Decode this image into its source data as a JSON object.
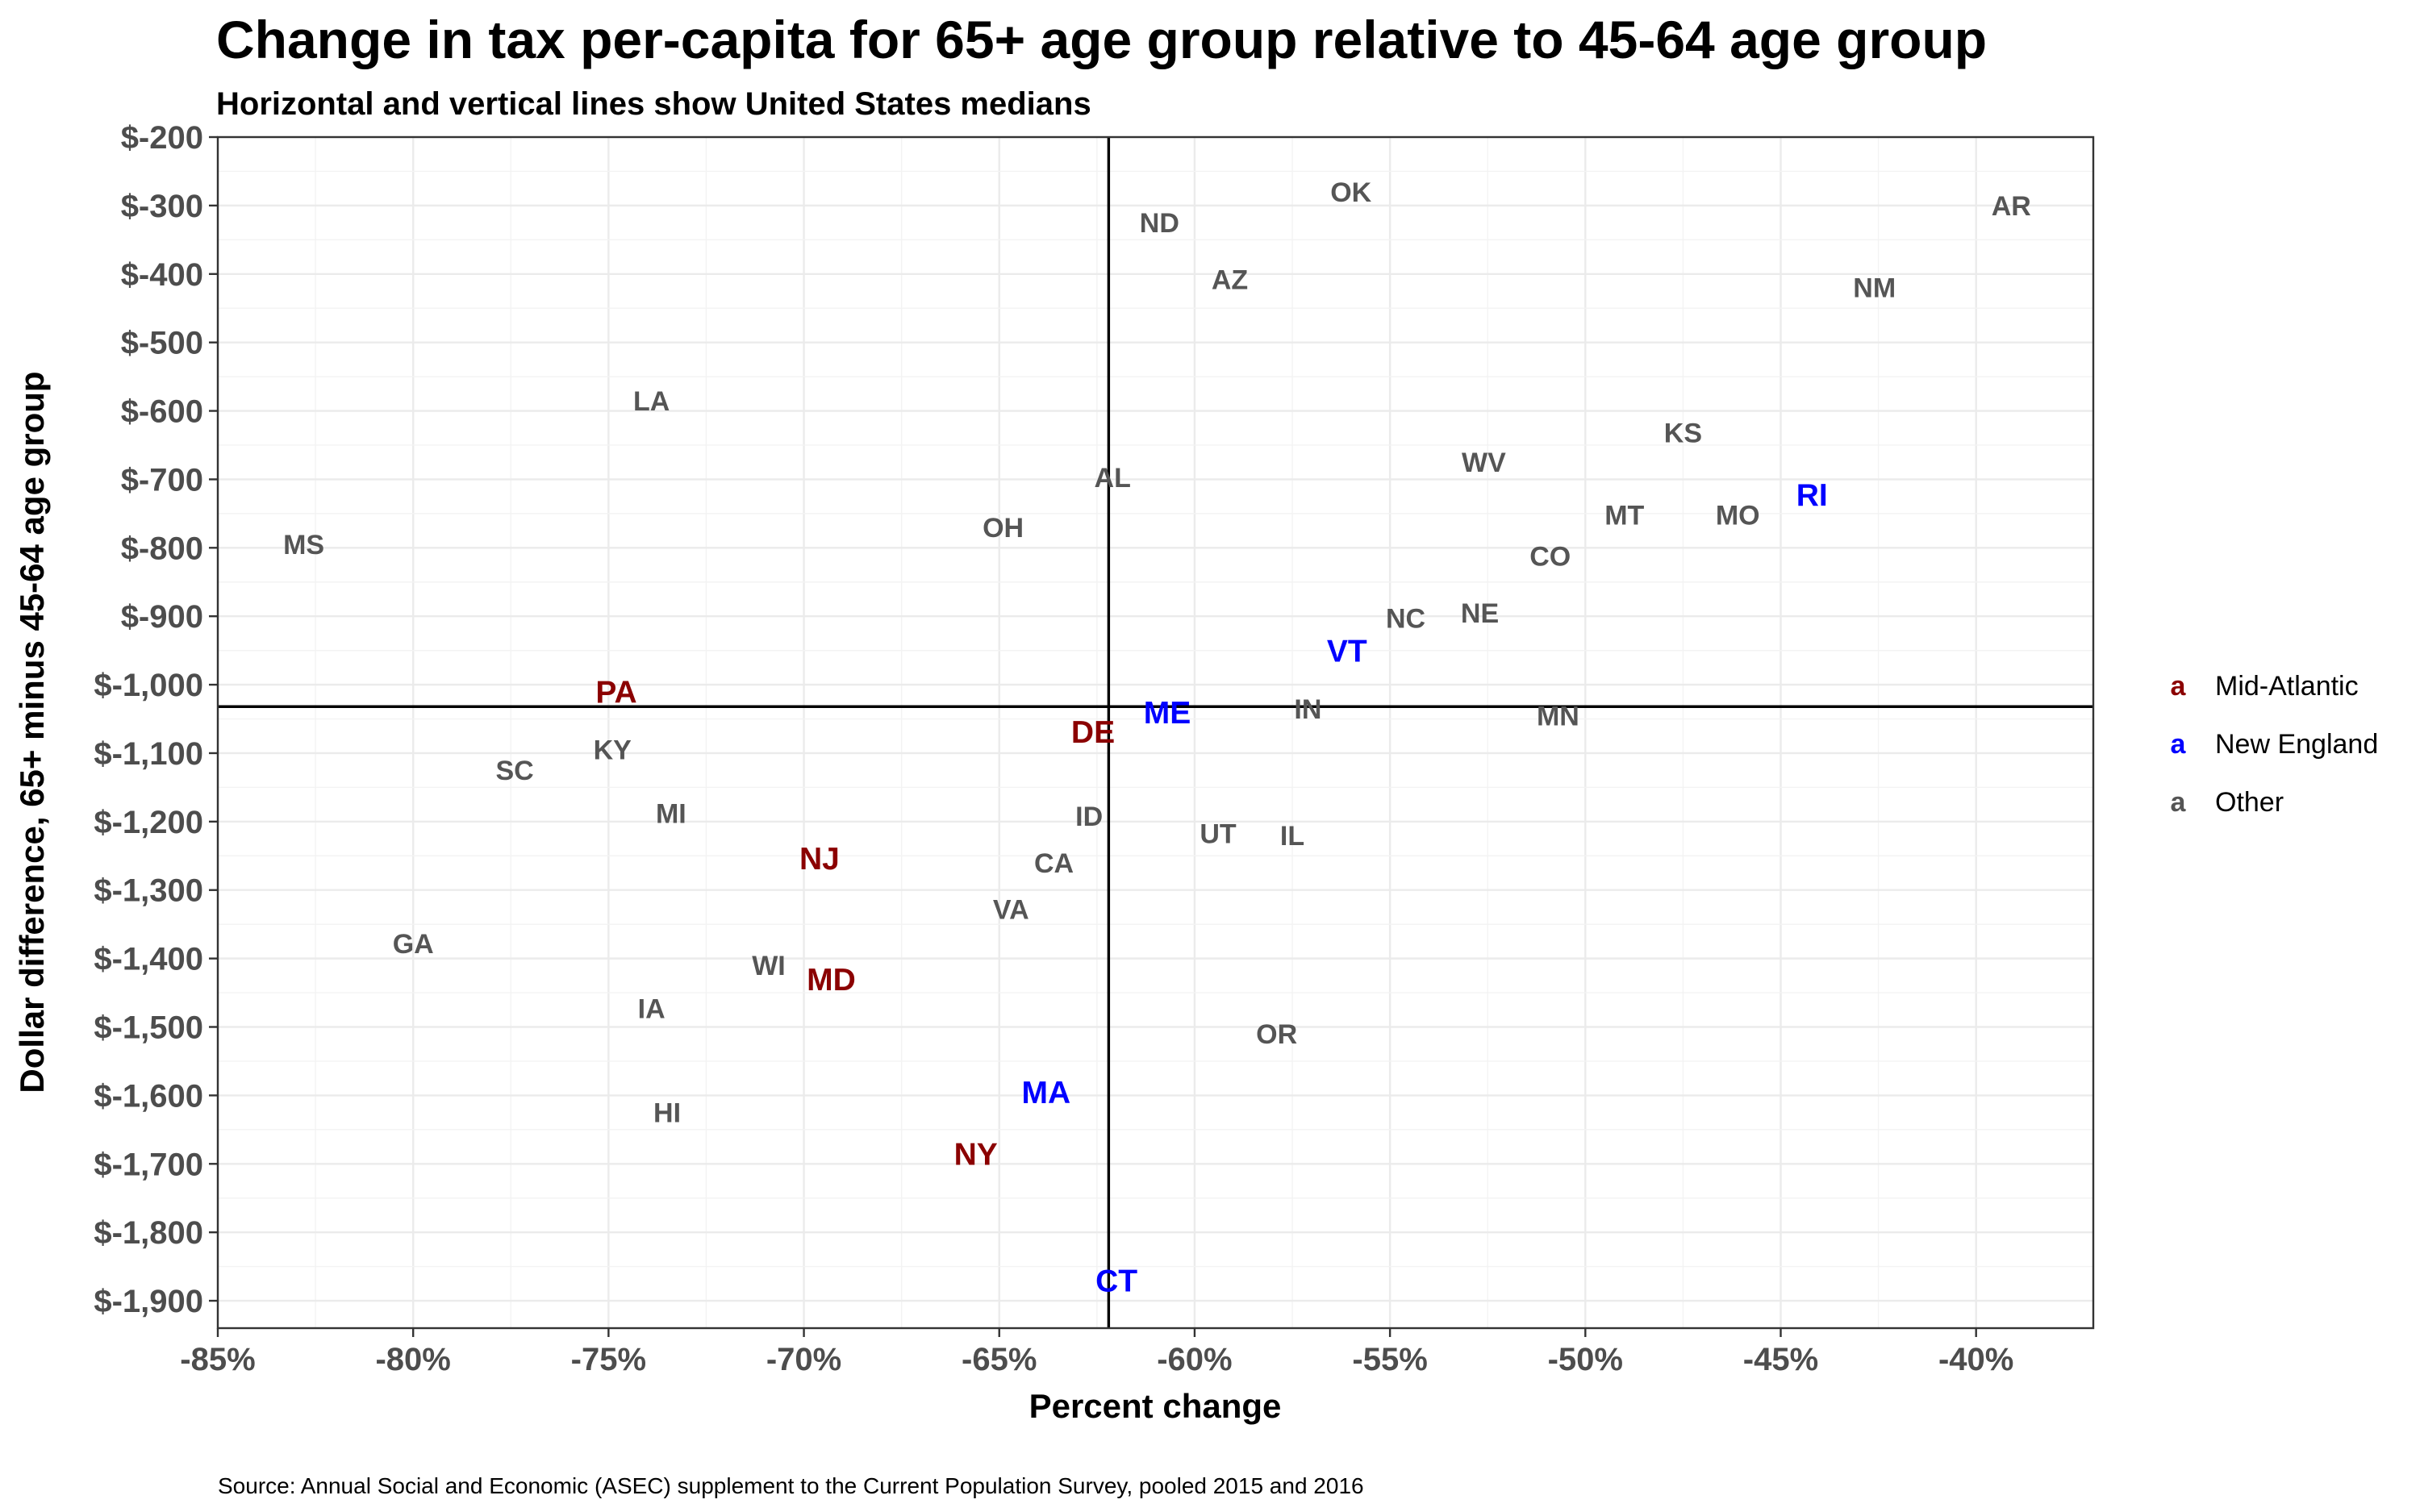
{
  "chart_data": {
    "type": "scatter",
    "title": "Change in tax per-capita for 65+ age group relative to 45-64 age group",
    "subtitle": "Horizontal and vertical lines show United States medians",
    "xlabel": "Percent change",
    "ylabel": "Dollar difference, 65+ minus 45-64 age group",
    "caption": "Source: Annual Social and Economic (ASEC) supplement to the Current Population Survey, pooled 2015 and 2016",
    "xlim": [
      -85,
      -37
    ],
    "ylim": [
      -1940,
      -200
    ],
    "x_ticks": [
      -85,
      -80,
      -75,
      -70,
      -65,
      -60,
      -55,
      -50,
      -45,
      -40
    ],
    "x_tick_labels": [
      "-85%",
      "-80%",
      "-75%",
      "-70%",
      "-65%",
      "-60%",
      "-55%",
      "-50%",
      "-45%",
      "-40%"
    ],
    "y_ticks": [
      -200,
      -300,
      -400,
      -500,
      -600,
      -700,
      -800,
      -900,
      -1000,
      -1100,
      -1200,
      -1300,
      -1400,
      -1500,
      -1600,
      -1700,
      -1800,
      -1900
    ],
    "y_tick_labels": [
      "$-200",
      "$-300",
      "$-400",
      "$-500",
      "$-600",
      "$-700",
      "$-800",
      "$-900",
      "$-1,000",
      "$-1,100",
      "$-1,200",
      "$-1,300",
      "$-1,400",
      "$-1,500",
      "$-1,600",
      "$-1,700",
      "$-1,800",
      "$-1,900"
    ],
    "grid": true,
    "median_x": -62.2,
    "median_y": -1032,
    "legend_position": "right",
    "legend_key_glyph": "a",
    "groups": [
      {
        "name": "Mid-Atlantic",
        "color": "#8b0000"
      },
      {
        "name": "New England",
        "color": "#0000ff"
      },
      {
        "name": "Other",
        "color": "#555555"
      }
    ],
    "points": [
      {
        "label": "OK",
        "x": -56.0,
        "y": -280,
        "group": "Other"
      },
      {
        "label": "AR",
        "x": -39.1,
        "y": -300,
        "group": "Other"
      },
      {
        "label": "ND",
        "x": -60.9,
        "y": -325,
        "group": "Other"
      },
      {
        "label": "AZ",
        "x": -59.1,
        "y": -408,
        "group": "Other"
      },
      {
        "label": "NM",
        "x": -42.6,
        "y": -420,
        "group": "Other"
      },
      {
        "label": "LA",
        "x": -73.9,
        "y": -585,
        "group": "Other"
      },
      {
        "label": "KS",
        "x": -47.5,
        "y": -632,
        "group": "Other"
      },
      {
        "label": "WV",
        "x": -52.6,
        "y": -675,
        "group": "Other"
      },
      {
        "label": "AL",
        "x": -62.1,
        "y": -697,
        "group": "Other"
      },
      {
        "label": "RI",
        "x": -44.2,
        "y": -722,
        "group": "New England"
      },
      {
        "label": "MT",
        "x": -49.0,
        "y": -752,
        "group": "Other"
      },
      {
        "label": "MO",
        "x": -46.1,
        "y": -752,
        "group": "Other"
      },
      {
        "label": "OH",
        "x": -64.9,
        "y": -770,
        "group": "Other"
      },
      {
        "label": "MS",
        "x": -82.8,
        "y": -795,
        "group": "Other"
      },
      {
        "label": "CO",
        "x": -50.9,
        "y": -812,
        "group": "Other"
      },
      {
        "label": "NE",
        "x": -52.7,
        "y": -895,
        "group": "Other"
      },
      {
        "label": "NC",
        "x": -54.6,
        "y": -903,
        "group": "Other"
      },
      {
        "label": "VT",
        "x": -56.1,
        "y": -950,
        "group": "New England"
      },
      {
        "label": "PA",
        "x": -74.8,
        "y": -1010,
        "group": "Mid-Atlantic"
      },
      {
        "label": "IN",
        "x": -57.1,
        "y": -1035,
        "group": "Other"
      },
      {
        "label": "ME",
        "x": -60.7,
        "y": -1040,
        "group": "New England"
      },
      {
        "label": "MN",
        "x": -50.7,
        "y": -1045,
        "group": "Other"
      },
      {
        "label": "DE",
        "x": -62.6,
        "y": -1068,
        "group": "Mid-Atlantic"
      },
      {
        "label": "KY",
        "x": -74.9,
        "y": -1095,
        "group": "Other"
      },
      {
        "label": "SC",
        "x": -77.4,
        "y": -1125,
        "group": "Other"
      },
      {
        "label": "MI",
        "x": -73.4,
        "y": -1188,
        "group": "Other"
      },
      {
        "label": "ID",
        "x": -62.7,
        "y": -1192,
        "group": "Other"
      },
      {
        "label": "UT",
        "x": -59.4,
        "y": -1217,
        "group": "Other"
      },
      {
        "label": "IL",
        "x": -57.5,
        "y": -1220,
        "group": "Other"
      },
      {
        "label": "NJ",
        "x": -69.6,
        "y": -1253,
        "group": "Mid-Atlantic"
      },
      {
        "label": "CA",
        "x": -63.6,
        "y": -1260,
        "group": "Other"
      },
      {
        "label": "VA",
        "x": -64.7,
        "y": -1328,
        "group": "Other"
      },
      {
        "label": "GA",
        "x": -80.0,
        "y": -1378,
        "group": "Other"
      },
      {
        "label": "WI",
        "x": -70.9,
        "y": -1410,
        "group": "Other"
      },
      {
        "label": "MD",
        "x": -69.3,
        "y": -1430,
        "group": "Mid-Atlantic"
      },
      {
        "label": "IA",
        "x": -73.9,
        "y": -1473,
        "group": "Other"
      },
      {
        "label": "OR",
        "x": -57.9,
        "y": -1510,
        "group": "Other"
      },
      {
        "label": "MA",
        "x": -63.8,
        "y": -1595,
        "group": "New England"
      },
      {
        "label": "HI",
        "x": -73.5,
        "y": -1625,
        "group": "Other"
      },
      {
        "label": "NY",
        "x": -65.6,
        "y": -1685,
        "group": "Mid-Atlantic"
      },
      {
        "label": "CT",
        "x": -62.0,
        "y": -1870,
        "group": "New England"
      }
    ]
  }
}
